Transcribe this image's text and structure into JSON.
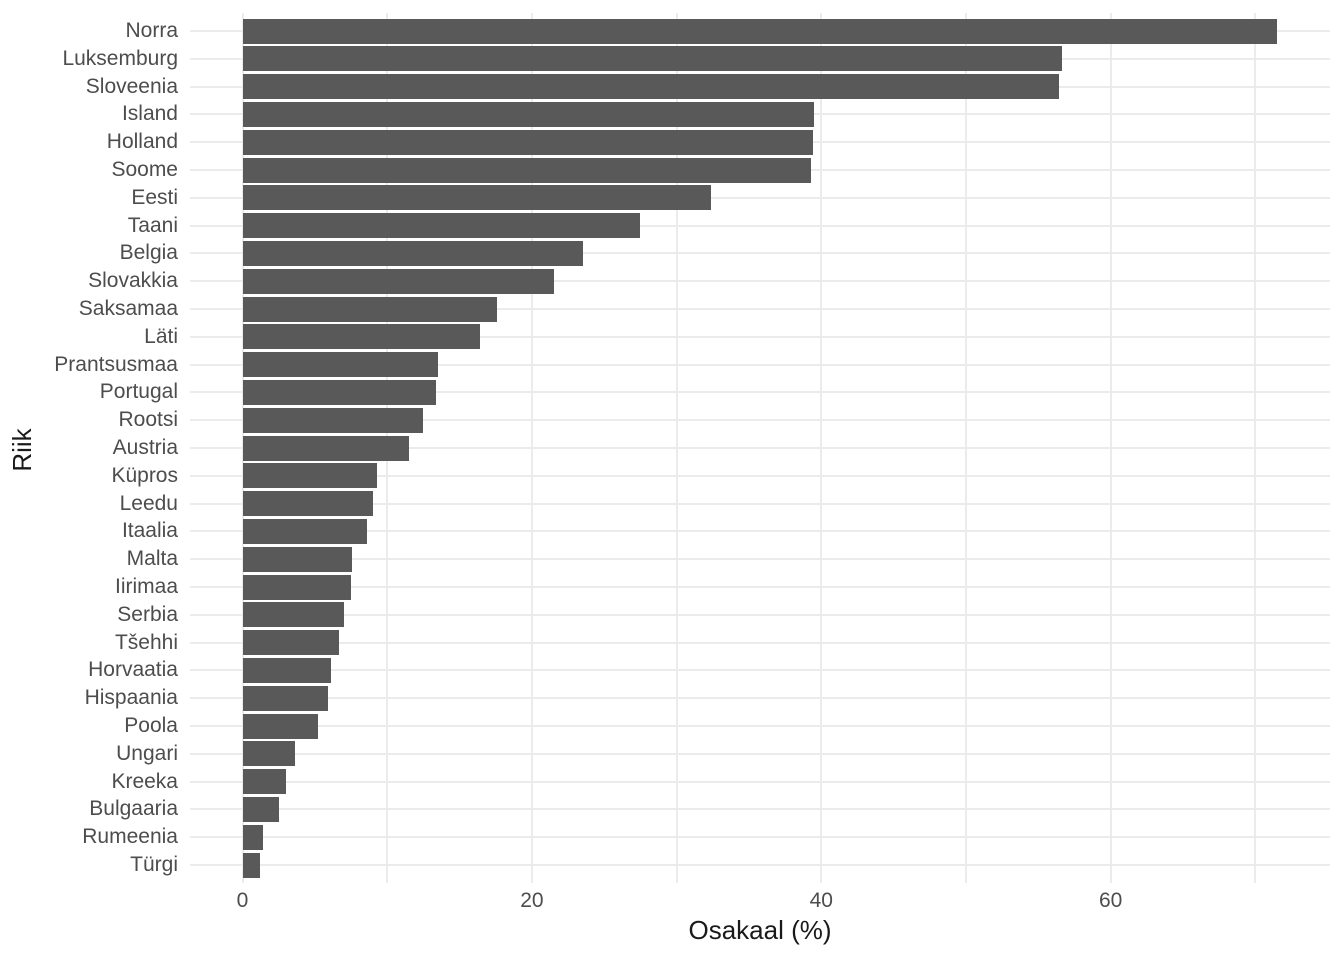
{
  "chart_data": {
    "type": "bar",
    "orientation": "horizontal",
    "title": "",
    "xlabel": "Osakaal (%)",
    "ylabel": "Riik",
    "categories": [
      "Norra",
      "Luksemburg",
      "Sloveenia",
      "Island",
      "Holland",
      "Soome",
      "Eesti",
      "Taani",
      "Belgia",
      "Slovakkia",
      "Saksamaa",
      "Läti",
      "Prantsusmaa",
      "Portugal",
      "Rootsi",
      "Austria",
      "Küpros",
      "Leedu",
      "Itaalia",
      "Malta",
      "Iirimaa",
      "Serbia",
      "Tšehhi",
      "Horvaatia",
      "Hispaania",
      "Poola",
      "Ungari",
      "Kreeka",
      "Bulgaaria",
      "Rumeenia",
      "Türgi"
    ],
    "values": [
      71.5,
      56.6,
      56.4,
      39.5,
      39.4,
      39.3,
      32.4,
      27.5,
      23.5,
      21.5,
      17.6,
      16.4,
      13.5,
      13.4,
      12.5,
      11.5,
      9.3,
      9.0,
      8.6,
      7.6,
      7.5,
      7.0,
      6.7,
      6.1,
      5.9,
      5.2,
      3.6,
      3.0,
      2.5,
      1.4,
      1.2
    ],
    "x_major_ticks": [
      0,
      20,
      40,
      60
    ],
    "x_gridlines": [
      0,
      10,
      20,
      30,
      40,
      50,
      60,
      70
    ],
    "xlim": [
      -3.6,
      75.2
    ],
    "grid": true,
    "legend": "none",
    "colors": {
      "bar": "#595959",
      "gridline": "#ebebeb",
      "tick_label": "#4d4d4d",
      "axis_title": "#1a1a1a",
      "background": "#ffffff"
    }
  }
}
